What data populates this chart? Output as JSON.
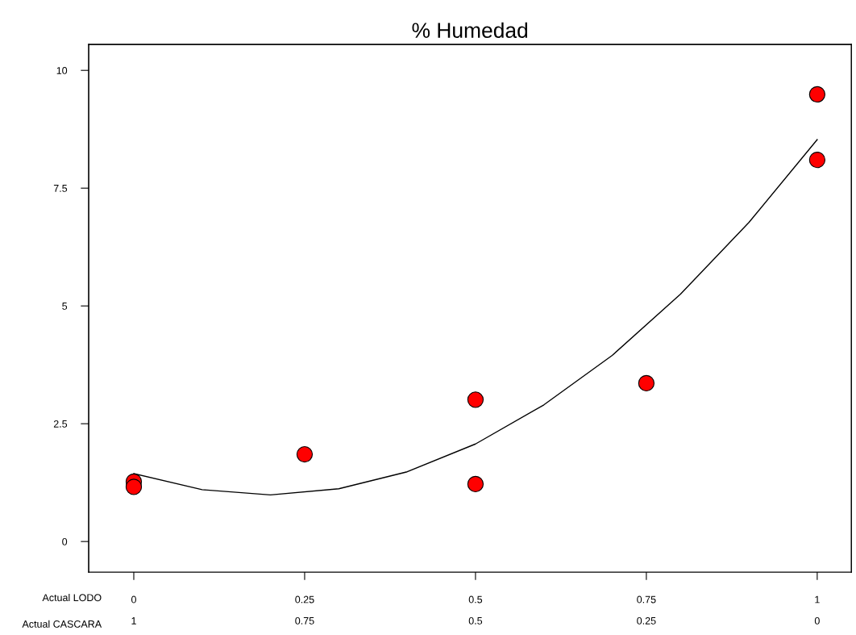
{
  "chart_data": {
    "type": "scatter",
    "title": "% Humedad",
    "xlabel": "Actual LODO",
    "x2label": "Actual CASCARA",
    "xlim": [
      -0.066,
      1.05
    ],
    "xticks": [
      0,
      0.25,
      0.5,
      0.75,
      1
    ],
    "x2lim": [
      1.066,
      -0.05
    ],
    "x2ticks": [
      1,
      0.75,
      0.5,
      0.25,
      0
    ],
    "ylim": [
      -0.65,
      10.55
    ],
    "yticks": [
      0,
      2.5,
      5,
      7.5,
      10
    ],
    "grid": false,
    "legend": false,
    "series": [
      {
        "color": "#ff0000",
        "marker": "circle",
        "x": [
          0,
          0,
          0.25,
          0.5,
          0.5,
          0.75,
          1,
          1
        ],
        "values": [
          1.27,
          1.16,
          1.85,
          3.01,
          1.22,
          3.36,
          9.49,
          8.1
        ]
      },
      {
        "type": "line",
        "color": "#000000",
        "marker": "none",
        "line_style": "solid",
        "x": [
          0,
          0.1,
          0.2,
          0.3,
          0.4,
          0.5,
          0.6,
          0.7,
          0.8,
          0.9,
          1
        ],
        "values": [
          1.44,
          1.1,
          0.99,
          1.12,
          1.48,
          2.07,
          2.9,
          3.95,
          5.25,
          6.77,
          8.53
        ]
      }
    ]
  }
}
